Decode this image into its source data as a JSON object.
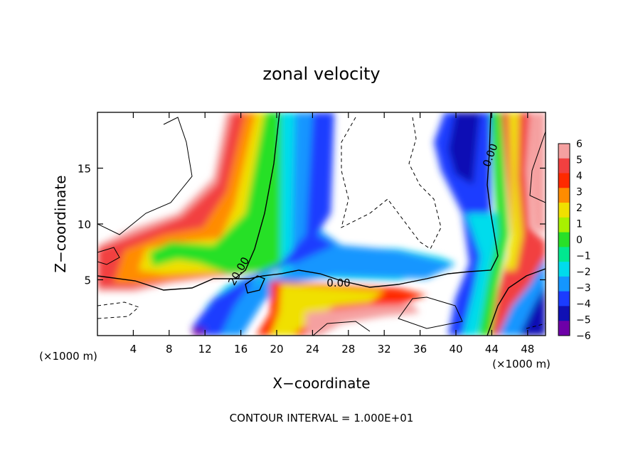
{
  "chart_data": {
    "type": "heatmap",
    "title": "zonal velocity",
    "xlabel": "X−coordinate",
    "ylabel": "Z−coordinate",
    "x_unit_left": "(×1000 m)",
    "x_unit_right": "(×1000 m)",
    "xlim": [
      0,
      50
    ],
    "ylim": [
      0,
      20
    ],
    "x_ticks": [
      4,
      8,
      12,
      16,
      20,
      24,
      28,
      32,
      36,
      40,
      44,
      48
    ],
    "y_ticks": [
      5,
      10,
      15
    ],
    "colorbar": {
      "min": -6,
      "max": 6,
      "ticks": [
        "6",
        "5",
        "4",
        "3",
        "2",
        "1",
        "0",
        "−1",
        "−2",
        "−3",
        "−4",
        "−5",
        "−6"
      ]
    },
    "contour_labels": [
      "20.00",
      "0.00",
      "0.00"
    ],
    "footer": "CONTOUR INTERVAL = 1.000E+01",
    "colors": {
      "v6": "#f5a0a0",
      "v5": "#f24040",
      "v4": "#ff2a00",
      "v3": "#ff8c00",
      "v2": "#f0e000",
      "v1": "#a8f000",
      "v0": "#28e028",
      "vm1": "#00e890",
      "vm2": "#00dcec",
      "vm3": "#1496ff",
      "vm4": "#1b3cff",
      "vm5": "#1010b4",
      "vm6": "#6e00a8"
    }
  }
}
